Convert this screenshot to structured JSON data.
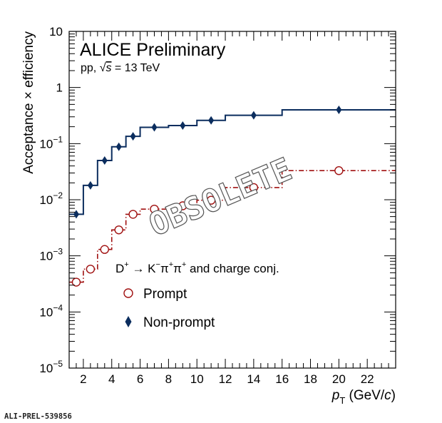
{
  "chart_data": {
    "type": "line",
    "title": "ALICE Preliminary",
    "subtitle_prefix": "pp, ",
    "subtitle_sqrt": "√",
    "subtitle_s": "s",
    "subtitle_suffix": " = 13 TeV",
    "ylabel": "Acceptance × efficiency",
    "xlabel_p": "p",
    "xlabel_sub": "T",
    "xlabel_unit": " (GeV/",
    "xlabel_c": "c",
    "xlabel_close": ")",
    "xlim": [
      1,
      24
    ],
    "ylim": [
      1e-05,
      10
    ],
    "yscale": "log",
    "x_ticks": [
      "2",
      "4",
      "6",
      "8",
      "10",
      "12",
      "14",
      "16",
      "18",
      "20",
      "22"
    ],
    "y_ticks": [
      {
        "base": "10",
        "exp": "−5"
      },
      {
        "base": "10",
        "exp": "−4"
      },
      {
        "base": "10",
        "exp": "−3"
      },
      {
        "base": "10",
        "exp": "−2"
      },
      {
        "base": "10",
        "exp": "−1"
      },
      {
        "base": "1",
        "exp": ""
      },
      {
        "base": "10",
        "exp": ""
      }
    ],
    "bin_edges": [
      1,
      2,
      3,
      4,
      5,
      6,
      8,
      10,
      12,
      16,
      24
    ],
    "series": [
      {
        "name": "Prompt",
        "color": "#a01010",
        "marker": "open-circle",
        "style": "dash-dot",
        "x": [
          1.5,
          2.5,
          3.5,
          4.5,
          5.5,
          7,
          9,
          11,
          14,
          20
        ],
        "values": [
          0.00034,
          0.00058,
          0.0013,
          0.0029,
          0.0055,
          0.0068,
          0.0078,
          0.0098,
          0.0165,
          0.033
        ]
      },
      {
        "name": "Non-prompt",
        "color": "#0b2d5e",
        "marker": "diamond",
        "style": "solid",
        "x": [
          1.5,
          2.5,
          3.5,
          4.5,
          5.5,
          7,
          9,
          11,
          14,
          20
        ],
        "values": [
          0.0055,
          0.018,
          0.05,
          0.088,
          0.135,
          0.195,
          0.21,
          0.26,
          0.32,
          0.4
        ]
      }
    ],
    "legend": {
      "title_D": "D",
      "title_sup1": "+",
      "title_arrow": " → K",
      "title_sup2": "−",
      "title_pi1": "π",
      "title_sup3": "+",
      "title_pi2": "π",
      "title_sup4": "+",
      "title_tail": " and charge conj."
    },
    "watermark": "OBSOLETE",
    "footer_label": "ALI-PREL-539856"
  }
}
